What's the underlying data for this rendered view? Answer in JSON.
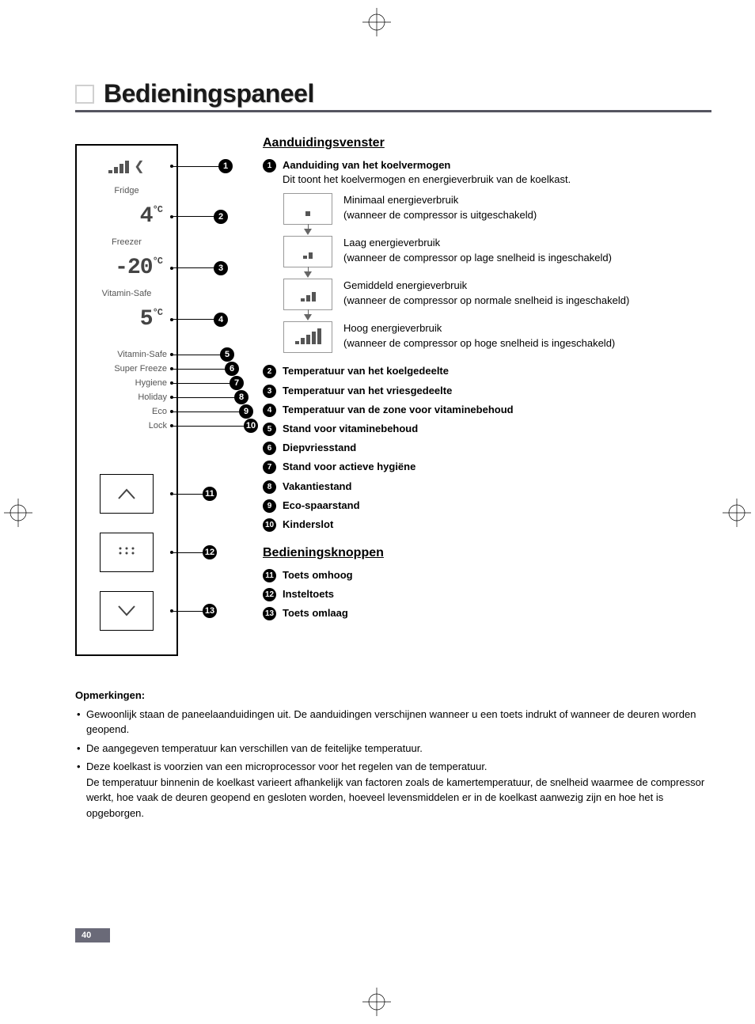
{
  "page_number": "40",
  "title": "Bedieningspaneel",
  "colors": {
    "title_underline": "#555560",
    "page_num_bg": "#6a6a78",
    "text": "#000000",
    "panel_text": "#555555"
  },
  "panel": {
    "fridge_label": "Fridge",
    "fridge_value": "4",
    "fridge_unit": "°C",
    "freezer_label": "Freezer",
    "freezer_value": "-20",
    "freezer_unit": "°C",
    "vitamin_label": "Vitamin-Safe",
    "vitamin_value": "5",
    "vitamin_unit": "°C",
    "modes": [
      "Vitamin-Safe",
      "Super Freeze",
      "Hygiene",
      "Holiday",
      "Eco",
      "Lock"
    ]
  },
  "sections": {
    "display_window": "Aanduidingsvenster",
    "control_buttons": "Bedieningsknoppen"
  },
  "item1": {
    "title": "Aanduiding van het koelvermogen",
    "desc": "Dit toont het koelvermogen en energieverbruik van de koelkast."
  },
  "energy_levels": [
    {
      "title": "Minimaal energieverbruik",
      "desc": "(wanneer de compressor is uitgeschakeld)",
      "bars": 1
    },
    {
      "title": "Laag energieverbruik",
      "desc": "(wanneer de compressor op lage snelheid is ingeschakeld)",
      "bars": 2
    },
    {
      "title": "Gemiddeld energieverbruik",
      "desc": "(wanneer de compressor op normale snelheid is ingeschakeld)",
      "bars": 3
    },
    {
      "title": "Hoog energieverbruik",
      "desc": "(wanneer de compressor op hoge snelheid is ingeschakeld)",
      "bars": 5
    }
  ],
  "items": [
    {
      "n": "2",
      "t": "Temperatuur van het koelgedeelte"
    },
    {
      "n": "3",
      "t": "Temperatuur van het vriesgedeelte"
    },
    {
      "n": "4",
      "t": "Temperatuur van de zone voor vitaminebehoud"
    },
    {
      "n": "5",
      "t": "Stand voor vitaminebehoud"
    },
    {
      "n": "6",
      "t": "Diepvriesstand"
    },
    {
      "n": "7",
      "t": "Stand voor actieve hygiëne"
    },
    {
      "n": "8",
      "t": "Vakantiestand"
    },
    {
      "n": "9",
      "t": "Eco-spaarstand"
    },
    {
      "n": "10",
      "t": "Kinderslot"
    }
  ],
  "buttons": [
    {
      "n": "11",
      "t": "Toets omhoog"
    },
    {
      "n": "12",
      "t": "Insteltoets"
    },
    {
      "n": "13",
      "t": "Toets omlaag"
    }
  ],
  "notes": {
    "title": "Opmerkingen:",
    "list": [
      "Gewoonlijk staan de paneelaanduidingen uit. De aanduidingen verschijnen wanneer u een toets indrukt of wanneer de deuren worden geopend.",
      "De aangegeven temperatuur kan verschillen van de feitelijke temperatuur.",
      "Deze koelkast is voorzien van een microprocessor voor het regelen van de temperatuur."
    ],
    "extra": "De temperatuur binnenin de koelkast varieert afhankelijk van factoren zoals de kamertemperatuur, de snelheid waarmee de compressor werkt, hoe vaak de deuren geopend en gesloten worden, hoeveel levensmiddelen er in de koelkast aanwezig zijn en hoe het is opgeborgen."
  }
}
